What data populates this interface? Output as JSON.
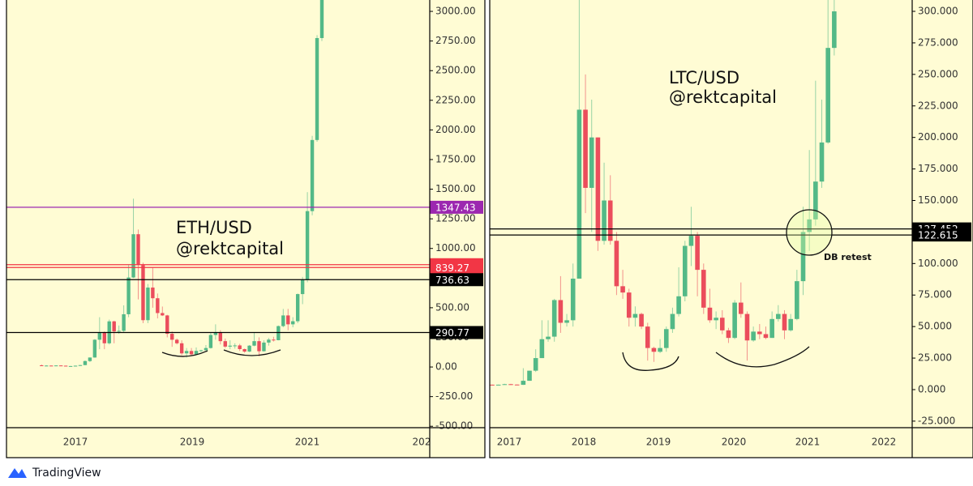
{
  "charts": [
    {
      "type": "candlestick",
      "title": "ETH/USD",
      "subtitle": "@rektcapital",
      "up_color": "#53b987",
      "down_color": "#eb4d5c",
      "ylim": [
        -512,
        3096
      ],
      "yticks": [
        {
          "value": -500,
          "label": "-500.00"
        },
        {
          "value": -250,
          "label": "-250.00"
        },
        {
          "value": 0,
          "label": "0.00"
        },
        {
          "value": 250,
          "label": "250.00"
        },
        {
          "value": 500,
          "label": "500.00"
        },
        {
          "value": 750,
          "label": "750.00"
        },
        {
          "value": 1000,
          "label": "1000.00"
        },
        {
          "value": 1250,
          "label": "1250.00"
        },
        {
          "value": 1500,
          "label": "1500.00"
        },
        {
          "value": 1750,
          "label": "1750.00"
        },
        {
          "value": 2000,
          "label": "2000.00"
        },
        {
          "value": 2250,
          "label": "2250.00"
        },
        {
          "value": 2500,
          "label": "2500.00"
        },
        {
          "value": 2750,
          "label": "2750.00"
        },
        {
          "value": 3000,
          "label": "3000.00"
        }
      ],
      "xticks": [
        "2017",
        "2019",
        "2021",
        "202"
      ],
      "open": [
        14,
        12,
        12,
        11,
        13,
        11,
        8,
        8,
        11,
        16,
        50,
        80,
        230,
        290,
        200,
        385,
        300,
        305,
        445,
        755,
        1120,
        860,
        395,
        670,
        580,
        455,
        435,
        280,
        230,
        200,
        115,
        135,
        107,
        136,
        141,
        160,
        270,
        290,
        218,
        172,
        180,
        182,
        151,
        130,
        180,
        218,
        133,
        206,
        231,
        226,
        345,
        435,
        360,
        386,
        615,
        737,
        1315,
        1915,
        2775
      ],
      "high": [
        21,
        15,
        12,
        14,
        14,
        12,
        9,
        12,
        17,
        55,
        80,
        235,
        420,
        300,
        400,
        390,
        350,
        520,
        860,
        1420,
        1160,
        880,
        700,
        840,
        620,
        510,
        440,
        300,
        240,
        225,
        160,
        160,
        165,
        145,
        185,
        290,
        360,
        310,
        240,
        225,
        200,
        195,
        155,
        185,
        290,
        250,
        225,
        245,
        255,
        350,
        490,
        490,
        420,
        620,
        760,
        1475,
        1950,
        2800,
        3300
      ],
      "low": [
        11,
        10,
        10,
        11,
        10,
        7,
        6,
        8,
        10,
        15,
        42,
        78,
        150,
        150,
        190,
        200,
        280,
        290,
        420,
        750,
        570,
        370,
        370,
        500,
        410,
        430,
        250,
        170,
        190,
        100,
        80,
        100,
        100,
        125,
        140,
        155,
        230,
        190,
        160,
        150,
        155,
        135,
        120,
        125,
        175,
        90,
        130,
        180,
        215,
        225,
        335,
        310,
        335,
        370,
        530,
        715,
        1280,
        1900,
        2750
      ],
      "close": [
        12,
        12,
        11,
        13,
        11,
        8,
        8,
        11,
        16,
        50,
        80,
        230,
        290,
        200,
        385,
        300,
        305,
        445,
        755,
        1120,
        860,
        395,
        670,
        580,
        455,
        435,
        280,
        230,
        200,
        115,
        135,
        107,
        136,
        141,
        160,
        270,
        290,
        218,
        172,
        180,
        182,
        151,
        130,
        180,
        218,
        133,
        206,
        231,
        226,
        345,
        435,
        360,
        386,
        615,
        737,
        1315,
        1915,
        2775,
        3300
      ],
      "levels": [
        {
          "value": 1347.43,
          "color": "#9c27b0"
        },
        {
          "value": 862.96,
          "color": "#f23645"
        },
        {
          "value": 839.27,
          "color": "#f23645"
        },
        {
          "value": 736.63,
          "color": "#000000"
        },
        {
          "value": 290.77,
          "color": "#000000"
        }
      ]
    },
    {
      "type": "candlestick",
      "title": "LTC/USD",
      "subtitle": "@rektcapital",
      "annotation": "DB retest",
      "up_color": "#53b987",
      "down_color": "#eb4d5c",
      "ylim": [
        -30.2,
        309
      ],
      "yticks": [
        {
          "value": -25,
          "label": "-25.000"
        },
        {
          "value": 0,
          "label": "0.000"
        },
        {
          "value": 25,
          "label": "25.000"
        },
        {
          "value": 50,
          "label": "50.000"
        },
        {
          "value": 75,
          "label": "75.000"
        },
        {
          "value": 100,
          "label": "100.000"
        },
        {
          "value": 125,
          "label": "125.000"
        },
        {
          "value": 150,
          "label": "150.000"
        },
        {
          "value": 175,
          "label": "175.000"
        },
        {
          "value": 200,
          "label": "200.000"
        },
        {
          "value": 225,
          "label": "225.000"
        },
        {
          "value": 250,
          "label": "250.000"
        },
        {
          "value": 275,
          "label": "275.000"
        },
        {
          "value": 300,
          "label": "300.000"
        }
      ],
      "xticks": [
        "2017",
        "2018",
        "2019",
        "2020",
        "2021",
        "2022"
      ],
      "open": [
        3.9,
        3.8,
        3.9,
        4.3,
        4.0,
        3.8,
        7,
        15,
        25,
        40,
        42,
        71,
        53,
        55,
        88,
        222,
        160,
        200,
        118,
        150,
        118,
        82,
        77,
        57,
        60,
        50,
        33,
        30,
        33,
        48,
        60,
        74,
        114,
        122,
        95,
        65,
        55,
        57,
        47,
        41,
        69,
        60,
        39,
        46,
        44,
        41,
        56,
        60,
        47,
        56,
        86,
        125,
        135,
        165,
        196,
        271
      ],
      "high": [
        4,
        4,
        4.6,
        4.6,
        4.1,
        17,
        15,
        32,
        55,
        55,
        72,
        90,
        60,
        100,
        375,
        250,
        230,
        200,
        180,
        170,
        125,
        95,
        80,
        66,
        61,
        53,
        34,
        40,
        50,
        65,
        97,
        118,
        145,
        125,
        100,
        80,
        62,
        63,
        49,
        71,
        85,
        62,
        50,
        52,
        50,
        62,
        67,
        63,
        60,
        95,
        145,
        190,
        245,
        230,
        320,
        420
      ],
      "low": [
        3.7,
        3.6,
        3.9,
        3.7,
        3.6,
        3.7,
        7,
        14,
        25,
        38,
        38,
        45,
        50,
        50,
        88,
        140,
        125,
        110,
        115,
        115,
        75,
        72,
        50,
        50,
        48,
        23,
        22,
        29,
        30,
        45,
        58,
        70,
        98,
        74,
        60,
        53,
        48,
        44,
        37,
        40,
        57,
        23,
        38,
        40,
        40,
        41,
        54,
        40,
        46,
        55,
        75,
        110,
        130,
        160,
        195,
        265
      ],
      "close": [
        3.8,
        3.9,
        4.3,
        4.0,
        3.8,
        7,
        15,
        25,
        40,
        42,
        71,
        53,
        55,
        88,
        222,
        160,
        200,
        118,
        150,
        118,
        82,
        77,
        57,
        60,
        50,
        33,
        30,
        33,
        48,
        60,
        74,
        114,
        122,
        95,
        65,
        55,
        57,
        47,
        41,
        69,
        60,
        39,
        46,
        44,
        41,
        56,
        60,
        47,
        56,
        86,
        125,
        135,
        165,
        196,
        271,
        300
      ],
      "levels": [
        {
          "value": 127.452,
          "color": "#000000"
        },
        {
          "value": 122.615,
          "color": "#000000"
        }
      ]
    }
  ],
  "footer": {
    "brand": "TradingView"
  }
}
